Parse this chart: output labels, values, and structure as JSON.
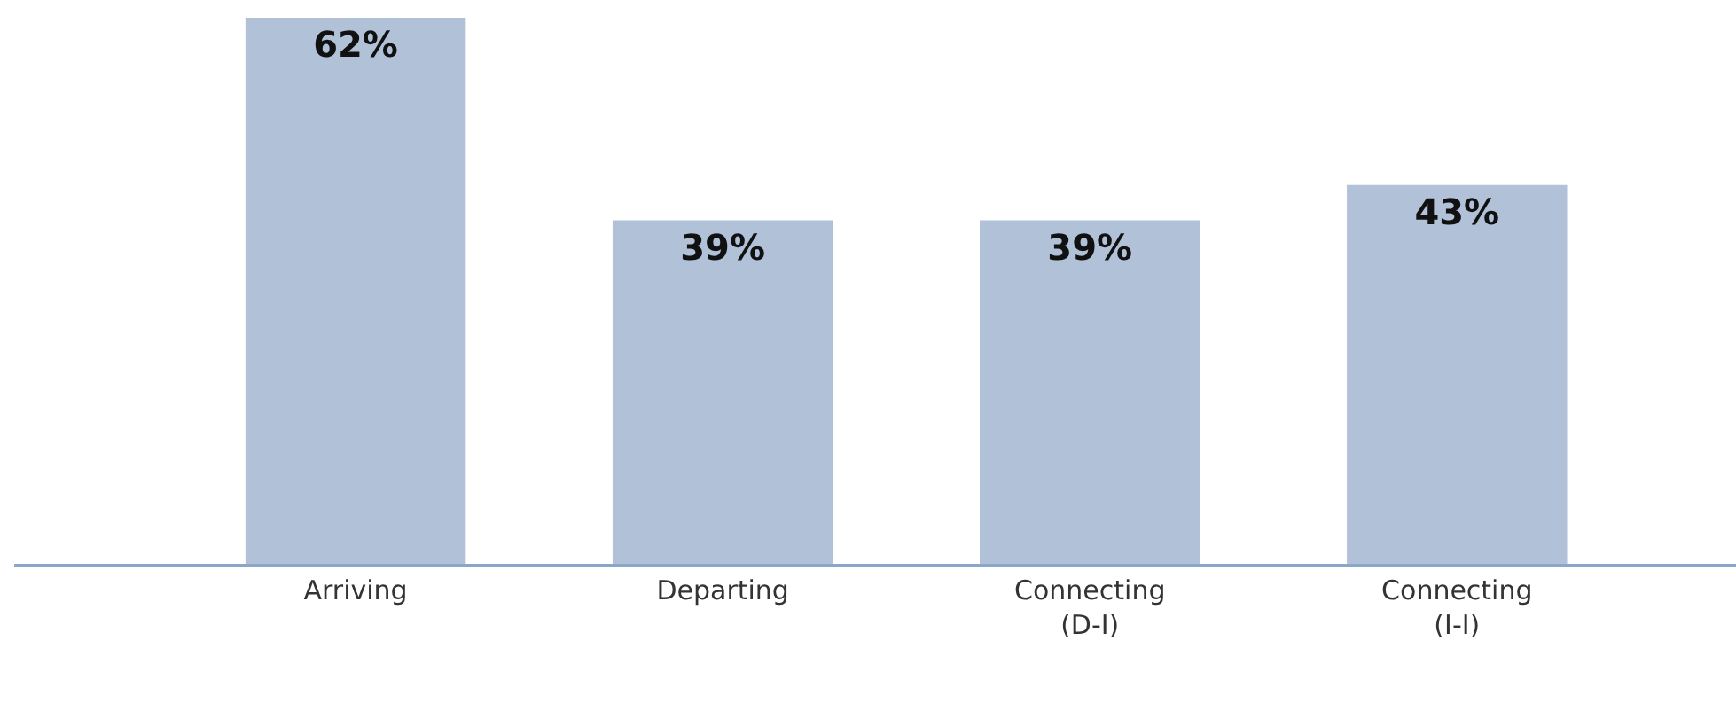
{
  "chart_data": {
    "type": "bar",
    "categories": [
      "Arriving",
      "Departing",
      "Connecting\n(D-I)",
      "Connecting\n(I-I)"
    ],
    "values": [
      62,
      39,
      39,
      43
    ],
    "value_labels": [
      "62%",
      "39%",
      "39%",
      "43%"
    ],
    "color": "#b0c1d8",
    "ylim": [
      0,
      62
    ]
  }
}
